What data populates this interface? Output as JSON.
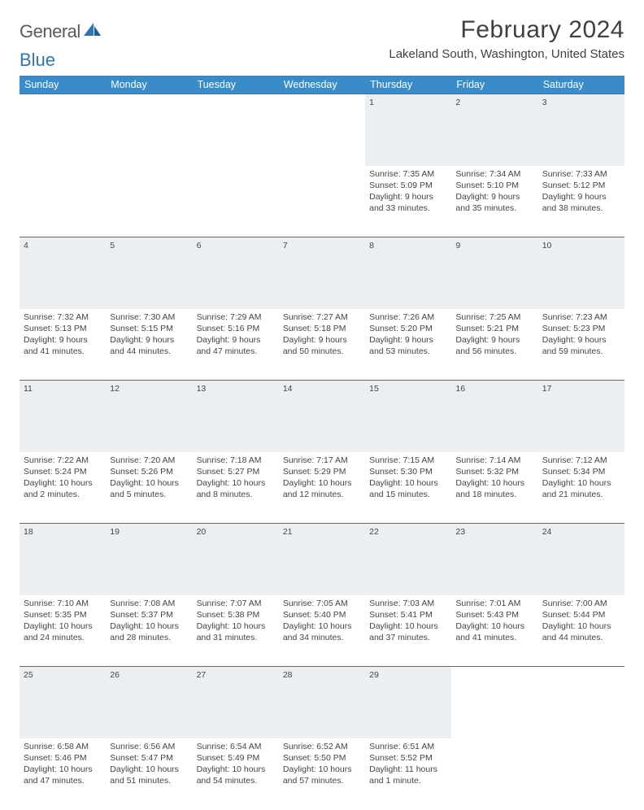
{
  "logo": {
    "text1": "General",
    "text2": "Blue"
  },
  "title": "February 2024",
  "location": "Lakeland South, Washington, United States",
  "colors": {
    "header_bg": "#3a8bc9",
    "rule": "#2e75b6",
    "dayrow_bg": "#eceff1",
    "text": "#404040"
  },
  "weekdays": [
    "Sunday",
    "Monday",
    "Tuesday",
    "Wednesday",
    "Thursday",
    "Friday",
    "Saturday"
  ],
  "weeks": [
    {
      "days": [
        null,
        null,
        null,
        null,
        {
          "n": "1",
          "sunrise": "7:35 AM",
          "sunset": "5:09 PM",
          "dl1": "Daylight: 9 hours",
          "dl2": "and 33 minutes."
        },
        {
          "n": "2",
          "sunrise": "7:34 AM",
          "sunset": "5:10 PM",
          "dl1": "Daylight: 9 hours",
          "dl2": "and 35 minutes."
        },
        {
          "n": "3",
          "sunrise": "7:33 AM",
          "sunset": "5:12 PM",
          "dl1": "Daylight: 9 hours",
          "dl2": "and 38 minutes."
        }
      ]
    },
    {
      "days": [
        {
          "n": "4",
          "sunrise": "7:32 AM",
          "sunset": "5:13 PM",
          "dl1": "Daylight: 9 hours",
          "dl2": "and 41 minutes."
        },
        {
          "n": "5",
          "sunrise": "7:30 AM",
          "sunset": "5:15 PM",
          "dl1": "Daylight: 9 hours",
          "dl2": "and 44 minutes."
        },
        {
          "n": "6",
          "sunrise": "7:29 AM",
          "sunset": "5:16 PM",
          "dl1": "Daylight: 9 hours",
          "dl2": "and 47 minutes."
        },
        {
          "n": "7",
          "sunrise": "7:27 AM",
          "sunset": "5:18 PM",
          "dl1": "Daylight: 9 hours",
          "dl2": "and 50 minutes."
        },
        {
          "n": "8",
          "sunrise": "7:26 AM",
          "sunset": "5:20 PM",
          "dl1": "Daylight: 9 hours",
          "dl2": "and 53 minutes."
        },
        {
          "n": "9",
          "sunrise": "7:25 AM",
          "sunset": "5:21 PM",
          "dl1": "Daylight: 9 hours",
          "dl2": "and 56 minutes."
        },
        {
          "n": "10",
          "sunrise": "7:23 AM",
          "sunset": "5:23 PM",
          "dl1": "Daylight: 9 hours",
          "dl2": "and 59 minutes."
        }
      ]
    },
    {
      "days": [
        {
          "n": "11",
          "sunrise": "7:22 AM",
          "sunset": "5:24 PM",
          "dl1": "Daylight: 10 hours",
          "dl2": "and 2 minutes."
        },
        {
          "n": "12",
          "sunrise": "7:20 AM",
          "sunset": "5:26 PM",
          "dl1": "Daylight: 10 hours",
          "dl2": "and 5 minutes."
        },
        {
          "n": "13",
          "sunrise": "7:18 AM",
          "sunset": "5:27 PM",
          "dl1": "Daylight: 10 hours",
          "dl2": "and 8 minutes."
        },
        {
          "n": "14",
          "sunrise": "7:17 AM",
          "sunset": "5:29 PM",
          "dl1": "Daylight: 10 hours",
          "dl2": "and 12 minutes."
        },
        {
          "n": "15",
          "sunrise": "7:15 AM",
          "sunset": "5:30 PM",
          "dl1": "Daylight: 10 hours",
          "dl2": "and 15 minutes."
        },
        {
          "n": "16",
          "sunrise": "7:14 AM",
          "sunset": "5:32 PM",
          "dl1": "Daylight: 10 hours",
          "dl2": "and 18 minutes."
        },
        {
          "n": "17",
          "sunrise": "7:12 AM",
          "sunset": "5:34 PM",
          "dl1": "Daylight: 10 hours",
          "dl2": "and 21 minutes."
        }
      ]
    },
    {
      "days": [
        {
          "n": "18",
          "sunrise": "7:10 AM",
          "sunset": "5:35 PM",
          "dl1": "Daylight: 10 hours",
          "dl2": "and 24 minutes."
        },
        {
          "n": "19",
          "sunrise": "7:08 AM",
          "sunset": "5:37 PM",
          "dl1": "Daylight: 10 hours",
          "dl2": "and 28 minutes."
        },
        {
          "n": "20",
          "sunrise": "7:07 AM",
          "sunset": "5:38 PM",
          "dl1": "Daylight: 10 hours",
          "dl2": "and 31 minutes."
        },
        {
          "n": "21",
          "sunrise": "7:05 AM",
          "sunset": "5:40 PM",
          "dl1": "Daylight: 10 hours",
          "dl2": "and 34 minutes."
        },
        {
          "n": "22",
          "sunrise": "7:03 AM",
          "sunset": "5:41 PM",
          "dl1": "Daylight: 10 hours",
          "dl2": "and 37 minutes."
        },
        {
          "n": "23",
          "sunrise": "7:01 AM",
          "sunset": "5:43 PM",
          "dl1": "Daylight: 10 hours",
          "dl2": "and 41 minutes."
        },
        {
          "n": "24",
          "sunrise": "7:00 AM",
          "sunset": "5:44 PM",
          "dl1": "Daylight: 10 hours",
          "dl2": "and 44 minutes."
        }
      ]
    },
    {
      "days": [
        {
          "n": "25",
          "sunrise": "6:58 AM",
          "sunset": "5:46 PM",
          "dl1": "Daylight: 10 hours",
          "dl2": "and 47 minutes."
        },
        {
          "n": "26",
          "sunrise": "6:56 AM",
          "sunset": "5:47 PM",
          "dl1": "Daylight: 10 hours",
          "dl2": "and 51 minutes."
        },
        {
          "n": "27",
          "sunrise": "6:54 AM",
          "sunset": "5:49 PM",
          "dl1": "Daylight: 10 hours",
          "dl2": "and 54 minutes."
        },
        {
          "n": "28",
          "sunrise": "6:52 AM",
          "sunset": "5:50 PM",
          "dl1": "Daylight: 10 hours",
          "dl2": "and 57 minutes."
        },
        {
          "n": "29",
          "sunrise": "6:51 AM",
          "sunset": "5:52 PM",
          "dl1": "Daylight: 11 hours",
          "dl2": "and 1 minute."
        },
        null,
        null
      ]
    }
  ]
}
